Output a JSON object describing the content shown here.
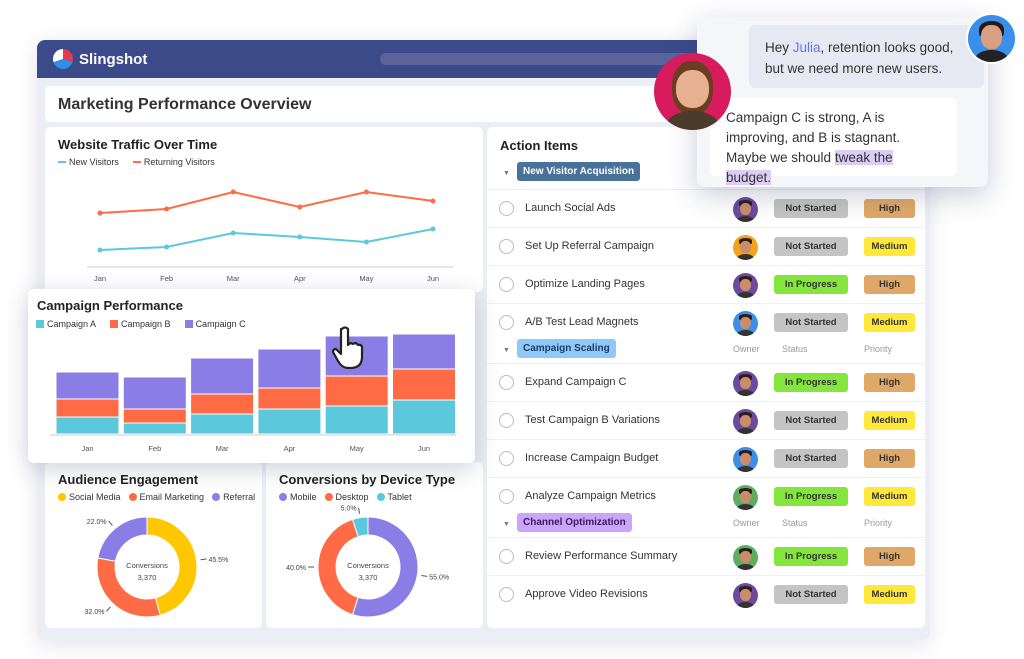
{
  "app": {
    "brand": "Slingshot",
    "page_title": "Marketing Performance Overview"
  },
  "colors": {
    "header": "#3d4a8a",
    "new_visitors": "#5bc8dc",
    "returning_visitors": "#ff6b45",
    "campaign_a": "#5bc8dc",
    "campaign_b": "#ff6b45",
    "campaign_c": "#8b7de6",
    "social": "#ffc700",
    "email": "#ff6b45",
    "referral": "#8b7de6",
    "mobile": "#8b7de6",
    "desktop": "#ff6b45",
    "tablet": "#5bc8dc"
  },
  "chart_data": [
    {
      "type": "line",
      "title": "Website Traffic Over Time",
      "categories": [
        "Jan",
        "Feb",
        "Mar",
        "Apr",
        "May",
        "Jun"
      ],
      "series": [
        {
          "name": "New Visitors",
          "values": [
            16,
            19,
            33,
            29,
            24,
            37
          ]
        },
        {
          "name": "Returning Visitors",
          "values": [
            53,
            57,
            74,
            59,
            74,
            65
          ]
        }
      ],
      "ylim": [
        0,
        100
      ],
      "grid": false,
      "legend": "top-left"
    },
    {
      "type": "bar",
      "stacked": true,
      "title": "Campaign Performance",
      "categories": [
        "Jan",
        "Feb",
        "Mar",
        "Apr",
        "May",
        "Jun"
      ],
      "series": [
        {
          "name": "Campaign A",
          "values": [
            17,
            11,
            20,
            25,
            28,
            34
          ]
        },
        {
          "name": "Campaign B",
          "values": [
            18,
            14,
            20,
            21,
            30,
            31
          ]
        },
        {
          "name": "Campaign C",
          "values": [
            27,
            32,
            36,
            39,
            40,
            35
          ]
        }
      ],
      "ylim": [
        0,
        100
      ],
      "grid": false,
      "legend": "top-left"
    },
    {
      "type": "pie",
      "donut": true,
      "title": "Audience Engagement",
      "center_label": "Conversions",
      "center_value": "3,370",
      "slices": [
        {
          "name": "Social Media",
          "value": 45.5,
          "label": "45.5%"
        },
        {
          "name": "Email Marketing",
          "value": 32.0,
          "label": "32.0%"
        },
        {
          "name": "Referral",
          "value": 22.0,
          "label": "22.0%"
        }
      ]
    },
    {
      "type": "pie",
      "donut": true,
      "title": "Conversions by Device Type",
      "center_label": "Conversions",
      "center_value": "3,370",
      "slices": [
        {
          "name": "Mobile",
          "value": 55.0,
          "label": "55.0%"
        },
        {
          "name": "Desktop",
          "value": 40.0,
          "label": "40.0%"
        },
        {
          "name": "Tablet",
          "value": 5.0,
          "label": "5.0%"
        }
      ]
    }
  ],
  "actions": {
    "title": "Action Items",
    "headers": {
      "owner": "Owner",
      "status": "Status",
      "priority": "Priority"
    },
    "groups": [
      {
        "name": "New Visitor Acquisition",
        "tag_bg": "#4a7199",
        "tag_fg": "#ffffff",
        "items": [
          {
            "task": "Launch Social Ads",
            "owner_color": "#6b4aa0",
            "status": "Not Started",
            "priority": "High"
          },
          {
            "task": "Set Up Referral Campaign",
            "owner_color": "#f2a31b",
            "status": "Not Started",
            "priority": "Medium"
          },
          {
            "task": "Optimize Landing Pages",
            "owner_color": "#6b4aa0",
            "status": "In Progress",
            "priority": "High"
          },
          {
            "task": "A/B Test Lead Magnets",
            "owner_color": "#3b8eea",
            "status": "Not Started",
            "priority": "Medium"
          }
        ]
      },
      {
        "name": "Campaign Scaling",
        "tag_bg": "#8fc9f7",
        "tag_fg": "#1f3a66",
        "items": [
          {
            "task": "Expand Campaign C",
            "owner_color": "#6b4aa0",
            "status": "In Progress",
            "priority": "High"
          },
          {
            "task": "Test Campaign B Variations",
            "owner_color": "#6b4aa0",
            "status": "Not Started",
            "priority": "Medium"
          },
          {
            "task": "Increase Campaign Budget",
            "owner_color": "#3b8eea",
            "status": "Not Started",
            "priority": "High"
          },
          {
            "task": "Analyze Campaign Metrics",
            "owner_color": "#5cae62",
            "status": "In Progress",
            "priority": "Medium"
          }
        ]
      },
      {
        "name": "Channel Optimization",
        "tag_bg": "#c9a6f7",
        "tag_fg": "#3a1a66",
        "items": [
          {
            "task": "Review Performance Summary",
            "owner_color": "#5cae62",
            "status": "In Progress",
            "priority": "High"
          },
          {
            "task": "Approve Video Revisions",
            "owner_color": "#6b4aa0",
            "status": "Not Started",
            "priority": "Medium"
          }
        ]
      }
    ],
    "status_colors": {
      "Not Started": "#c4c4c4",
      "In Progress": "#84e63c"
    },
    "priority_colors": {
      "High": "#e0a866",
      "Medium": "#ffe83a"
    }
  },
  "chat": {
    "msg1_pre": "Hey ",
    "msg1_mention": "Julia",
    "msg1_post": ", retention looks good, but we need more new users.",
    "msg2_pre": "Campaign C is strong, A is improving, and B is stagnant. Maybe we should ",
    "msg2_highlight": "tweak the budget."
  }
}
